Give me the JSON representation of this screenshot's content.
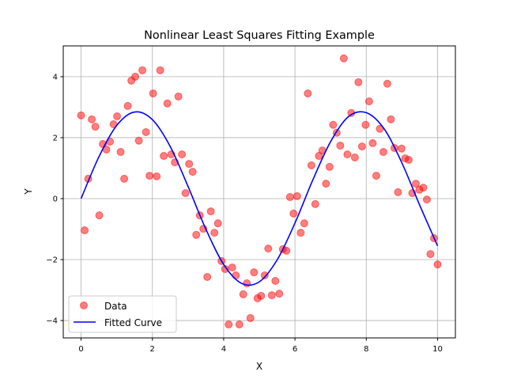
{
  "chart_data": {
    "type": "scatter",
    "title": "Nonlinear Least Squares Fitting Example",
    "xlabel": "X",
    "ylabel": "Y",
    "xlim": [
      -0.5,
      10.5
    ],
    "ylim": [
      -4.57,
      5.01
    ],
    "xticks": [
      "0",
      "2",
      "4",
      "6",
      "8",
      "10"
    ],
    "yticks": [
      "−4",
      "−2",
      "0",
      "2",
      "4"
    ],
    "grid": true,
    "legend_position": "lower-left",
    "series": [
      {
        "name": "Data",
        "kind": "scatter",
        "color": "#ff0000",
        "alpha": 0.5,
        "x": [
          0.0,
          0.1,
          0.2,
          0.3,
          0.4,
          0.51,
          0.61,
          0.71,
          0.81,
          0.91,
          1.01,
          1.11,
          1.21,
          1.31,
          1.41,
          1.52,
          1.62,
          1.72,
          1.82,
          1.92,
          2.02,
          2.12,
          2.22,
          2.32,
          2.42,
          2.53,
          2.63,
          2.73,
          2.83,
          2.93,
          3.03,
          3.13,
          3.23,
          3.33,
          3.43,
          3.54,
          3.64,
          3.74,
          3.84,
          3.94,
          4.04,
          4.14,
          4.24,
          4.34,
          4.44,
          4.55,
          4.65,
          4.75,
          4.85,
          4.95,
          5.05,
          5.15,
          5.25,
          5.35,
          5.45,
          5.56,
          5.66,
          5.76,
          5.86,
          5.96,
          6.06,
          6.16,
          6.26,
          6.36,
          6.46,
          6.57,
          6.67,
          6.77,
          6.87,
          6.97,
          7.07,
          7.17,
          7.27,
          7.37,
          7.47,
          7.58,
          7.68,
          7.78,
          7.88,
          7.98,
          8.08,
          8.18,
          8.28,
          8.38,
          8.48,
          8.59,
          8.69,
          8.79,
          8.89,
          8.99,
          9.09,
          9.19,
          9.29,
          9.39,
          9.49,
          9.6,
          9.7,
          9.8,
          9.9,
          10.0
        ],
        "y": [
          2.73,
          -1.04,
          0.65,
          2.6,
          2.36,
          -0.55,
          1.79,
          1.61,
          1.87,
          2.44,
          2.7,
          1.53,
          0.65,
          3.04,
          3.87,
          4.0,
          1.9,
          4.21,
          2.18,
          0.75,
          3.45,
          0.73,
          4.21,
          1.4,
          3.12,
          1.45,
          1.19,
          3.35,
          1.45,
          0.18,
          1.14,
          0.88,
          -1.19,
          -0.55,
          -0.99,
          -2.57,
          -0.42,
          -1.12,
          -0.81,
          -2.05,
          -2.31,
          -4.13,
          -2.26,
          -2.52,
          -4.13,
          -3.14,
          -2.78,
          -3.92,
          -2.42,
          -3.27,
          -3.19,
          -2.52,
          -1.64,
          -3.17,
          -2.7,
          -3.12,
          -1.66,
          -1.71,
          0.05,
          -0.49,
          0.08,
          -1.12,
          -0.81,
          3.45,
          1.09,
          -0.18,
          1.4,
          1.58,
          0.49,
          1.04,
          2.42,
          2.16,
          1.74,
          4.6,
          1.45,
          2.81,
          1.35,
          3.82,
          1.71,
          2.42,
          3.19,
          1.82,
          0.75,
          2.29,
          1.53,
          3.77,
          2.6,
          1.66,
          0.21,
          1.64,
          1.32,
          1.27,
          0.18,
          0.49,
          0.29,
          0.36,
          -0.03,
          -1.82,
          -1.3,
          -2.16
        ]
      },
      {
        "name": "Fitted Curve",
        "kind": "line",
        "color": "#0000ff",
        "x": [
          0,
          0.5,
          1,
          1.5,
          2,
          2.5,
          3,
          3.5,
          4,
          4.5,
          5,
          5.5,
          6,
          6.5,
          7,
          7.5,
          8,
          8.5,
          9,
          9.5,
          10
        ],
        "y": [
          0,
          1.37,
          2.4,
          2.84,
          2.59,
          1.71,
          0.4,
          -1.0,
          -2.16,
          -2.78,
          -2.73,
          -2.01,
          -0.8,
          0.61,
          1.87,
          2.69,
          2.82,
          2.29,
          1.17,
          -0.22,
          -1.55
        ]
      }
    ]
  }
}
